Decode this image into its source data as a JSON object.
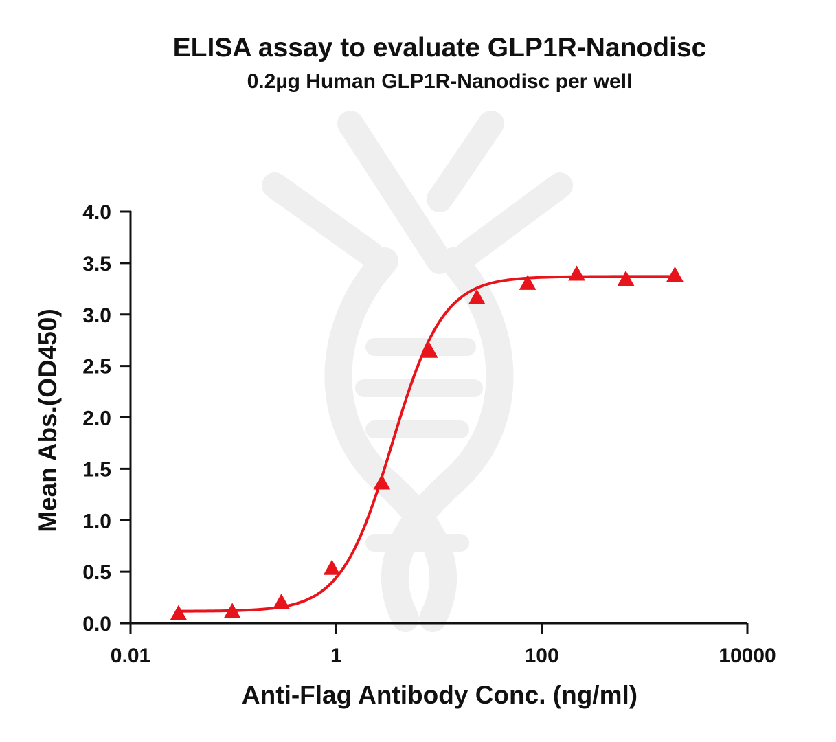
{
  "chart_data": {
    "type": "line",
    "title": "ELISA assay to evaluate GLP1R-Nanodisc",
    "subtitle": "0.2µg Human GLP1R-Nanodisc per well",
    "xlabel": "Anti-Flag Antibody Conc. (ng/ml)",
    "ylabel": "Mean Abs.(OD450)",
    "x_scale": "log",
    "xlim": [
      0.01,
      10000
    ],
    "ylim": [
      0,
      4.0
    ],
    "x_ticks": [
      0.01,
      1,
      100,
      10000
    ],
    "x_tick_labels": [
      "0.01",
      "1",
      "100",
      "10000"
    ],
    "y_ticks": [
      0.0,
      0.5,
      1.0,
      1.5,
      2.0,
      2.5,
      3.0,
      3.5,
      4.0
    ],
    "y_tick_labels": [
      "0.0",
      "0.5",
      "1.0",
      "1.5",
      "2.0",
      "2.5",
      "3.0",
      "3.5",
      "4.0"
    ],
    "grid": false,
    "legend": "none",
    "colors": {
      "series": "#e8141b",
      "axis": "#111111",
      "watermark": "#eeeeee"
    },
    "series": [
      {
        "marker": "triangle",
        "points": [
          {
            "x": 0.0293,
            "y": 0.09
          },
          {
            "x": 0.0977,
            "y": 0.11
          },
          {
            "x": 0.293,
            "y": 0.2
          },
          {
            "x": 0.91,
            "y": 0.53
          },
          {
            "x": 2.78,
            "y": 1.36
          },
          {
            "x": 8.1,
            "y": 2.64
          },
          {
            "x": 23.4,
            "y": 3.16
          },
          {
            "x": 72.9,
            "y": 3.3
          },
          {
            "x": 219,
            "y": 3.39
          },
          {
            "x": 657,
            "y": 3.34
          },
          {
            "x": 1972,
            "y": 3.38
          }
        ],
        "fit": {
          "model": "four-parameter-logistic",
          "bottom": 0.115,
          "top": 3.37,
          "ec50": 3.5,
          "hill": 1.75
        }
      }
    ]
  },
  "watermark": {
    "icon": "dna-helix-watermark-icon"
  }
}
